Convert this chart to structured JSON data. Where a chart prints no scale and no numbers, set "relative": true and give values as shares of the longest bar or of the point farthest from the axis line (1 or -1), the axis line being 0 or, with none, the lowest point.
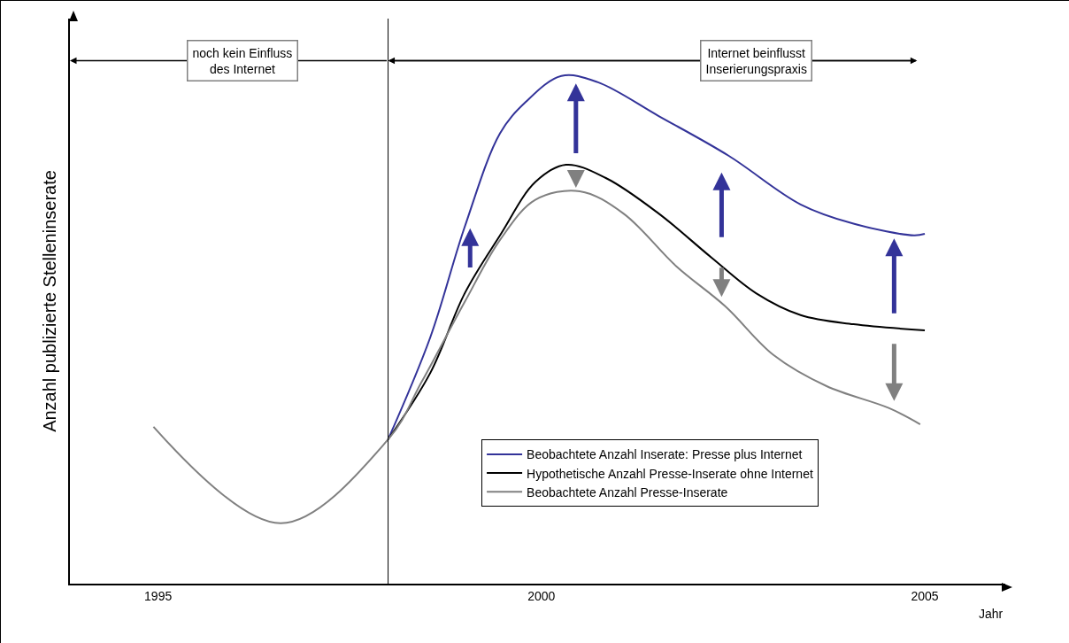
{
  "chart_data": {
    "type": "line",
    "relative": true,
    "ylabel": "Anzahl publizierte Stelleninserate",
    "xlabel": "Jahr",
    "xlim": [
      1993.85,
      2006.05
    ],
    "xticks": [
      1995,
      2000,
      2005
    ],
    "grid": false,
    "legend": "bottom right",
    "marker": "none",
    "line_style": "solid",
    "annotations": [
      "noch kein Einfluss\ndes Internet",
      "Internet beinflusst\nInserierungspraxis"
    ],
    "ref_lines": [
      {
        "axis": "x",
        "value": 1998,
        "color": "#000000"
      }
    ],
    "series": [
      {
        "name": "Beobachtete Anzahl Inserate: Presse plus Internet",
        "color": "#333399",
        "x": [
          1998,
          1998.55,
          1999,
          1999.46,
          1999.79,
          2000.26,
          2000.73,
          2001.53,
          2002.44,
          2003.38,
          2004.07,
          2004.86,
          2005
        ],
        "values": [
          0.284,
          0.485,
          0.703,
          0.887,
          0.948,
          1,
          0.988,
          0.921,
          0.843,
          0.747,
          0.709,
          0.686,
          0.689
        ]
      },
      {
        "name": "Hypothetische Anzahl Presse-Inserate ohne Internet",
        "color": "#000000",
        "x": [
          1998,
          1998.55,
          1999,
          1999.46,
          1999.92,
          2000.32,
          2000.84,
          2001.53,
          2002.22,
          2002.8,
          2003.38,
          2004.07,
          2005
        ],
        "values": [
          0.284,
          0.415,
          0.572,
          0.686,
          0.791,
          0.825,
          0.799,
          0.729,
          0.642,
          0.572,
          0.529,
          0.511,
          0.499
        ]
      },
      {
        "name": "Beobachtete Anzahl Presse-Inserate",
        "color": "#808080",
        "x": [
          1994.94,
          1996.6,
          1998,
          1998.44,
          1999,
          1999.46,
          1999.92,
          2000.5,
          2001.07,
          2001.76,
          2002.4,
          2003.03,
          2003.72,
          2004.53,
          2004.94
        ],
        "values": [
          0.309,
          0.119,
          0.284,
          0.398,
          0.555,
          0.677,
          0.756,
          0.773,
          0.729,
          0.625,
          0.546,
          0.45,
          0.389,
          0.346,
          0.314
        ]
      }
    ]
  }
}
